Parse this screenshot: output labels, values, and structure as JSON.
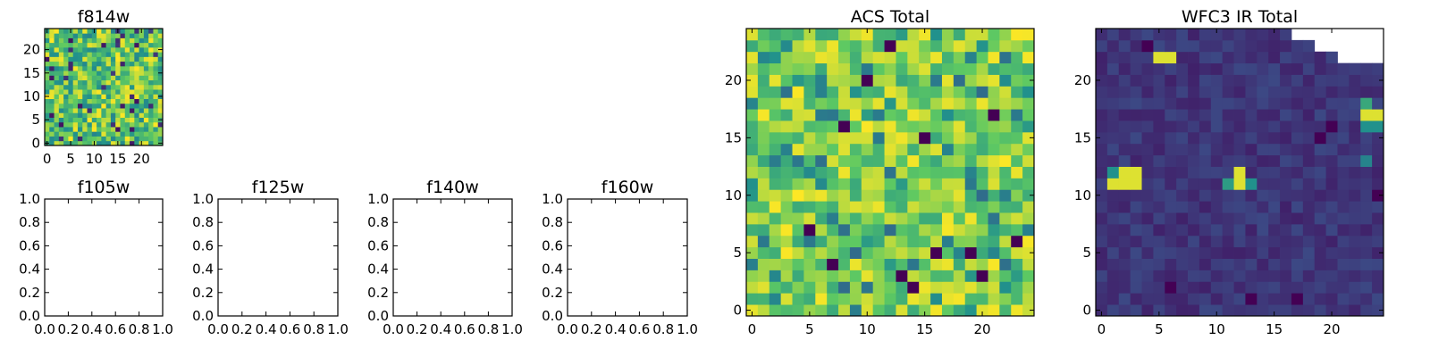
{
  "chart_data": [
    {
      "type": "heatmap",
      "title": "f814w",
      "colormap": "viridis",
      "grid_size": [
        25,
        25
      ],
      "xlim": [
        -0.5,
        24.5
      ],
      "ylim": [
        -0.5,
        24.5
      ],
      "xticks": [
        0,
        5,
        10,
        15,
        20
      ],
      "yticks": [
        0,
        5,
        10,
        15,
        20
      ],
      "value_range": [
        0,
        1
      ],
      "pattern": "noise",
      "seed": 11,
      "hot_pixels": [],
      "dark_pixels": [],
      "masked_top_right": []
    },
    {
      "type": "heatmap",
      "title": "f105w",
      "empty": true,
      "xlim": [
        0,
        1
      ],
      "ylim": [
        0,
        1
      ],
      "xticks": [
        "0.0",
        "0.2",
        "0.4",
        "0.6",
        "0.8",
        "1.0"
      ],
      "yticks": [
        "0.0",
        "0.2",
        "0.4",
        "0.6",
        "0.8",
        "1.0"
      ]
    },
    {
      "type": "heatmap",
      "title": "f125w",
      "empty": true,
      "xlim": [
        0,
        1
      ],
      "ylim": [
        0,
        1
      ],
      "xticks": [
        "0.0",
        "0.2",
        "0.4",
        "0.6",
        "0.8",
        "1.0"
      ],
      "yticks": [
        "0.0",
        "0.2",
        "0.4",
        "0.6",
        "0.8",
        "1.0"
      ]
    },
    {
      "type": "heatmap",
      "title": "f140w",
      "empty": true,
      "xlim": [
        0,
        1
      ],
      "ylim": [
        0,
        1
      ],
      "xticks": [
        "0.0",
        "0.2",
        "0.4",
        "0.6",
        "0.8",
        "1.0"
      ],
      "yticks": [
        "0.0",
        "0.2",
        "0.4",
        "0.6",
        "0.8",
        "1.0"
      ]
    },
    {
      "type": "heatmap",
      "title": "f160w",
      "empty": true,
      "xlim": [
        0,
        1
      ],
      "ylim": [
        0,
        1
      ],
      "xticks": [
        "0.0",
        "0.2",
        "0.4",
        "0.6",
        "0.8",
        "1.0"
      ],
      "yticks": [
        "0.0",
        "0.2",
        "0.4",
        "0.6",
        "0.8",
        "1.0"
      ]
    },
    {
      "type": "heatmap",
      "title": "ACS Total",
      "colormap": "viridis",
      "grid_size": [
        25,
        25
      ],
      "xlim": [
        -0.5,
        24.5
      ],
      "ylim": [
        -0.5,
        24.5
      ],
      "xticks": [
        0,
        5,
        10,
        15,
        20
      ],
      "yticks": [
        0,
        5,
        10,
        15,
        20
      ],
      "value_range": [
        0,
        1
      ],
      "pattern": "noise-high",
      "seed": 29,
      "hot_pixels": [],
      "dark_pixels": [
        [
          8,
          16
        ],
        [
          12,
          23
        ],
        [
          21,
          17
        ],
        [
          15,
          15
        ],
        [
          5,
          7
        ],
        [
          7,
          4
        ],
        [
          19,
          5
        ],
        [
          16,
          5
        ],
        [
          20,
          3
        ],
        [
          14,
          2
        ],
        [
          10,
          20
        ],
        [
          13,
          3
        ],
        [
          23,
          6
        ]
      ],
      "masked_top_right": []
    },
    {
      "type": "heatmap",
      "title": "WFC3 IR Total",
      "colormap": "viridis",
      "grid_size": [
        25,
        25
      ],
      "xlim": [
        -0.5,
        24.5
      ],
      "ylim": [
        -0.5,
        24.5
      ],
      "xticks": [
        0,
        5,
        10,
        15,
        20
      ],
      "yticks": [
        0,
        5,
        10,
        15,
        20
      ],
      "value_range": [
        0,
        1
      ],
      "pattern": "low",
      "seed": 7,
      "hot_pixels": [
        [
          5,
          22,
          0.95
        ],
        [
          6,
          22,
          0.95
        ],
        [
          1,
          11,
          0.95
        ],
        [
          2,
          11,
          0.95
        ],
        [
          3,
          11,
          0.95
        ],
        [
          2,
          12,
          0.95
        ],
        [
          3,
          12,
          0.95
        ],
        [
          1,
          12,
          0.5
        ],
        [
          12,
          11,
          0.95
        ],
        [
          12,
          12,
          0.95
        ],
        [
          11,
          11,
          0.55
        ],
        [
          13,
          11,
          0.5
        ],
        [
          23,
          17,
          0.95
        ],
        [
          24,
          17,
          0.95
        ],
        [
          23,
          16,
          0.5
        ],
        [
          24,
          16,
          0.5
        ],
        [
          23,
          18,
          0.6
        ],
        [
          23,
          13,
          0.45
        ]
      ],
      "dark_pixels": [
        [
          6,
          2
        ],
        [
          20,
          16
        ],
        [
          13,
          1
        ],
        [
          17,
          1
        ],
        [
          24,
          10
        ],
        [
          19,
          15
        ],
        [
          4,
          23
        ]
      ],
      "masked_top_right": [
        [
          17,
          24
        ],
        [
          18,
          24
        ],
        [
          19,
          24
        ],
        [
          20,
          24
        ],
        [
          21,
          24
        ],
        [
          22,
          24
        ],
        [
          23,
          24
        ],
        [
          24,
          24
        ],
        [
          19,
          23
        ],
        [
          20,
          23
        ],
        [
          21,
          23
        ],
        [
          22,
          23
        ],
        [
          23,
          23
        ],
        [
          24,
          23
        ],
        [
          21,
          22
        ],
        [
          22,
          22
        ],
        [
          23,
          22
        ],
        [
          24,
          22
        ]
      ]
    }
  ]
}
